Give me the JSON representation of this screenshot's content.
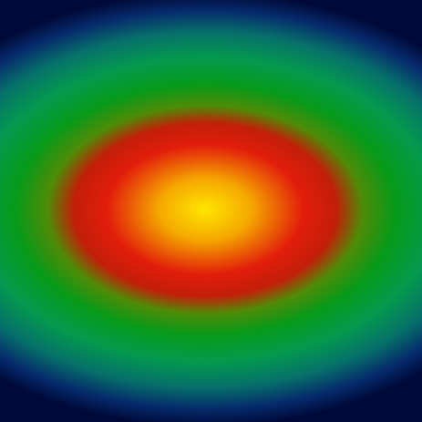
{
  "image": {
    "kind": "radial-gradient-heatmap",
    "shape": "horizontal ellipse",
    "colormap": {
      "stops": [
        {
          "offset": 0.0,
          "color": "#ffe600"
        },
        {
          "offset": 0.14,
          "color": "#f5a800"
        },
        {
          "offset": 0.3,
          "color": "#e21d0b"
        },
        {
          "offset": 0.4,
          "color": "#c21f08"
        },
        {
          "offset": 0.48,
          "color": "#4f8b07"
        },
        {
          "offset": 0.58,
          "color": "#069a1a"
        },
        {
          "offset": 0.7,
          "color": "#049a4e"
        },
        {
          "offset": 0.82,
          "color": "#06706a"
        },
        {
          "offset": 0.92,
          "color": "#062b6c"
        },
        {
          "offset": 1.0,
          "color": "#000a3a"
        }
      ]
    }
  }
}
